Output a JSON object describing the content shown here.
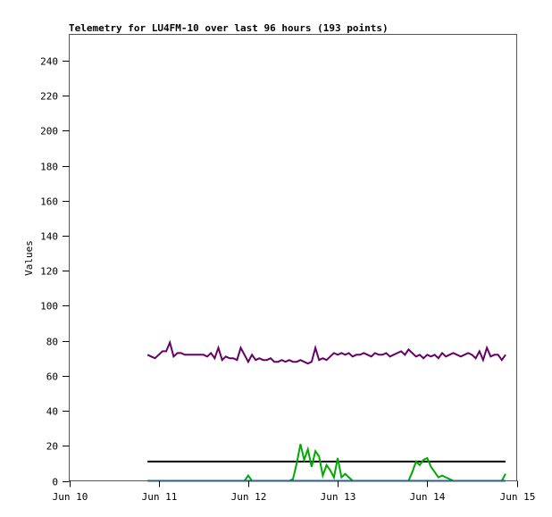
{
  "chart_data": {
    "type": "line",
    "title": "Telemetry for LU4FM-10 over last 96 hours (193 points)",
    "xlabel": "",
    "ylabel": "Values",
    "ylim": [
      0,
      255
    ],
    "xlim": [
      "Jun 10 00:00",
      "Jun 15 00:00"
    ],
    "grid": false,
    "yticks": [
      0,
      20,
      40,
      60,
      80,
      100,
      120,
      140,
      160,
      180,
      200,
      220,
      240
    ],
    "xticks": [
      "Jun 10",
      "Jun 11",
      "Jun 12",
      "Jun 13",
      "Jun 14",
      "Jun 15"
    ],
    "x": [
      "Jun 10 21:00",
      "Jun 10 22:00",
      "Jun 10 23:00",
      "Jun 11 00:00",
      "Jun 11 01:00",
      "Jun 11 02:00",
      "Jun 11 03:00",
      "Jun 11 04:00",
      "Jun 11 05:00",
      "Jun 11 06:00",
      "Jun 11 07:00",
      "Jun 11 08:00",
      "Jun 11 09:00",
      "Jun 11 10:00",
      "Jun 11 11:00",
      "Jun 11 12:00",
      "Jun 11 13:00",
      "Jun 11 14:00",
      "Jun 11 15:00",
      "Jun 11 16:00",
      "Jun 11 17:00",
      "Jun 11 18:00",
      "Jun 11 19:00",
      "Jun 11 20:00",
      "Jun 11 21:00",
      "Jun 11 22:00",
      "Jun 11 23:00",
      "Jun 12 00:00",
      "Jun 12 01:00",
      "Jun 12 02:00",
      "Jun 12 03:00",
      "Jun 12 04:00",
      "Jun 12 05:00",
      "Jun 12 06:00",
      "Jun 12 07:00",
      "Jun 12 08:00",
      "Jun 12 09:00",
      "Jun 12 10:00",
      "Jun 12 11:00",
      "Jun 12 12:00",
      "Jun 12 13:00",
      "Jun 12 14:00",
      "Jun 12 15:00",
      "Jun 12 16:00",
      "Jun 12 17:00",
      "Jun 12 18:00",
      "Jun 12 19:00",
      "Jun 12 20:00",
      "Jun 12 21:00",
      "Jun 12 22:00",
      "Jun 12 23:00",
      "Jun 13 00:00",
      "Jun 13 01:00",
      "Jun 13 02:00",
      "Jun 13 03:00",
      "Jun 13 04:00",
      "Jun 13 05:00",
      "Jun 13 06:00",
      "Jun 13 07:00",
      "Jun 13 08:00",
      "Jun 13 09:00",
      "Jun 13 10:00",
      "Jun 13 11:00",
      "Jun 13 12:00",
      "Jun 13 13:00",
      "Jun 13 14:00",
      "Jun 13 15:00",
      "Jun 13 16:00",
      "Jun 13 17:00",
      "Jun 13 18:00",
      "Jun 13 19:00",
      "Jun 13 20:00",
      "Jun 13 21:00",
      "Jun 13 22:00",
      "Jun 13 23:00",
      "Jun 14 00:00",
      "Jun 14 01:00",
      "Jun 14 02:00",
      "Jun 14 03:00",
      "Jun 14 04:00",
      "Jun 14 05:00",
      "Jun 14 06:00",
      "Jun 14 07:00",
      "Jun 14 08:00",
      "Jun 14 09:00",
      "Jun 14 10:00",
      "Jun 14 11:00",
      "Jun 14 12:00",
      "Jun 14 13:00",
      "Jun 14 14:00",
      "Jun 14 15:00",
      "Jun 14 16:00",
      "Jun 14 17:00",
      "Jun 14 18:00",
      "Jun 14 19:00",
      "Jun 14 20:00",
      "Jun 14 21:00"
    ],
    "series": [
      {
        "color": "#660066",
        "values": [
          72,
          71,
          70,
          72,
          74,
          74,
          79,
          71,
          73,
          73,
          72,
          72,
          72,
          72,
          72,
          72,
          71,
          73,
          70,
          76,
          69,
          71,
          70,
          70,
          69,
          76,
          72,
          68,
          72,
          69,
          70,
          69,
          69,
          70,
          68,
          68,
          69,
          68,
          69,
          68,
          68,
          69,
          68,
          67,
          68,
          76,
          69,
          70,
          69,
          71,
          73,
          72,
          73,
          72,
          73,
          71,
          72,
          72,
          73,
          72,
          71,
          73,
          72,
          72,
          73,
          71,
          72,
          73,
          74,
          72,
          75,
          73,
          71,
          72,
          70,
          72,
          71,
          72,
          70,
          73,
          71,
          72,
          73,
          72,
          71,
          72,
          73,
          72,
          70,
          74,
          69,
          76,
          71,
          72,
          72,
          69,
          72
        ]
      },
      {
        "color": "#000000",
        "values": [
          11,
          11,
          11,
          11,
          11,
          11,
          11,
          11,
          11,
          11,
          11,
          11,
          11,
          11,
          11,
          11,
          11,
          11,
          11,
          11,
          11,
          11,
          11,
          11,
          11,
          11,
          11,
          11,
          11,
          11,
          11,
          11,
          11,
          11,
          11,
          11,
          11,
          11,
          11,
          11,
          11,
          11,
          11,
          11,
          11,
          11,
          11,
          11,
          11,
          11,
          11,
          11,
          11,
          11,
          11,
          11,
          11,
          11,
          11,
          11,
          11,
          11,
          11,
          11,
          11,
          11,
          11,
          11,
          11,
          11,
          11,
          11,
          11,
          11,
          11,
          11,
          11,
          11,
          11,
          11,
          11,
          11,
          11,
          11,
          11,
          11,
          11,
          11,
          11,
          11,
          11,
          11,
          11,
          11,
          11,
          11,
          11
        ]
      },
      {
        "color": "#00aa00",
        "values": [
          0,
          0,
          0,
          0,
          0,
          0,
          0,
          0,
          0,
          0,
          0,
          0,
          0,
          0,
          0,
          0,
          0,
          0,
          0,
          0,
          0,
          0,
          0,
          0,
          0,
          0,
          0,
          3,
          0,
          0,
          0,
          0,
          0,
          0,
          0,
          0,
          0,
          0,
          0,
          1,
          10,
          21,
          12,
          18,
          8,
          17,
          14,
          3,
          9,
          6,
          2,
          13,
          2,
          4,
          2,
          0,
          0,
          0,
          0,
          0,
          0,
          0,
          0,
          0,
          0,
          0,
          0,
          0,
          0,
          0,
          0,
          5,
          11,
          9,
          12,
          13,
          8,
          5,
          2,
          3,
          2,
          1,
          0,
          0,
          0,
          0,
          0,
          0,
          0,
          0,
          0,
          0,
          0,
          0,
          0,
          0,
          4
        ]
      },
      {
        "color": "#0066cc",
        "values": [
          0,
          0,
          0,
          0,
          0,
          0,
          0,
          0,
          0,
          0,
          0,
          0,
          0,
          0,
          0,
          0,
          0,
          0,
          0,
          0,
          0,
          0,
          0,
          0,
          0,
          0,
          0,
          0,
          0,
          0,
          0,
          0,
          0,
          0,
          0,
          0,
          0,
          0,
          0,
          0,
          0,
          0,
          0,
          0,
          0,
          0,
          0,
          0,
          0,
          0,
          0,
          0,
          0,
          0,
          0,
          0,
          0,
          0,
          0,
          0,
          0,
          0,
          0,
          0,
          0,
          0,
          0,
          0,
          0,
          0,
          0,
          0,
          0,
          0,
          0,
          0,
          0,
          0,
          0,
          0,
          0,
          0,
          0,
          0,
          0,
          0,
          0,
          0,
          0,
          0,
          0,
          0,
          0,
          0,
          0,
          0,
          0
        ]
      }
    ]
  }
}
